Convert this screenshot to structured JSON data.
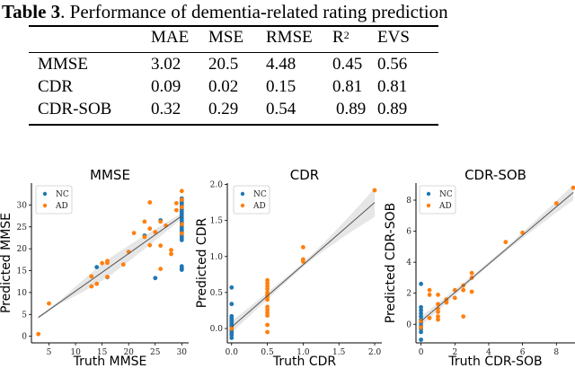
{
  "caption": {
    "label": "Table 3",
    "text": ". Performance of dementia-related rating prediction"
  },
  "table": {
    "columns": [
      "",
      "MAE",
      "MSE",
      "RMSE",
      "R",
      "EVS"
    ],
    "r2_superscript": "2",
    "rows": [
      {
        "name": "MMSE",
        "values": [
          "3.02",
          "20.5",
          "4.48",
          "0.45",
          "0.56"
        ]
      },
      {
        "name": "CDR",
        "values": [
          "0.09",
          "0.02",
          "0.15",
          "0.81",
          "0.81"
        ]
      },
      {
        "name": "CDR-SOB",
        "values": [
          "0.32",
          "0.29",
          "0.54",
          "0.89",
          "0.89"
        ]
      }
    ]
  },
  "colors": {
    "NC": "#1f77b4",
    "AD": "#ff7f0e",
    "fit": "#555555",
    "band": "#e6e6e6"
  },
  "chart_data": [
    {
      "type": "scatter",
      "title": "MMSE",
      "xlabel": "Truth MMSE",
      "ylabel": "Predicted MMSE",
      "xlim": [
        1.7,
        31.3
      ],
      "ylim": [
        -1.5,
        35
      ],
      "xticks": [
        5,
        10,
        15,
        20,
        25,
        30
      ],
      "yticks": [
        0,
        5,
        10,
        15,
        20,
        25,
        30
      ],
      "legend": {
        "position": "top-left",
        "entries": [
          "NC",
          "AD"
        ]
      },
      "fit_line": {
        "x": [
          3,
          30
        ],
        "y": [
          4.3,
          27.5
        ],
        "band_halfwidth": [
          2.0,
          0.6
        ]
      },
      "series": [
        {
          "name": "NC",
          "points": [
            [
              14,
              15.8
            ],
            [
              16,
              13.5
            ],
            [
              23,
              23
            ],
            [
              25,
              13.3
            ],
            [
              26,
              26.5
            ],
            [
              30,
              31.5
            ],
            [
              30,
              31
            ],
            [
              30,
              30.5
            ],
            [
              30,
              30
            ],
            [
              30,
              29.5
            ],
            [
              30,
              29
            ],
            [
              30,
              28.5
            ],
            [
              30,
              28
            ],
            [
              30,
              27.5
            ],
            [
              30,
              27
            ],
            [
              30,
              26.5
            ],
            [
              30,
              26
            ],
            [
              30,
              25.5
            ],
            [
              30,
              25
            ],
            [
              30,
              24.5
            ],
            [
              30,
              24
            ],
            [
              30,
              23.5
            ],
            [
              30,
              23
            ],
            [
              30,
              22.5
            ],
            [
              30,
              22
            ],
            [
              30,
              16
            ],
            [
              30,
              15.5
            ],
            [
              30,
              15.2
            ]
          ]
        },
        {
          "name": "AD",
          "points": [
            [
              3,
              0.5
            ],
            [
              5,
              7.5
            ],
            [
              13,
              13.7
            ],
            [
              13,
              11.4
            ],
            [
              14,
              12
            ],
            [
              15,
              16.7
            ],
            [
              16,
              17.2
            ],
            [
              16,
              16.8
            ],
            [
              16,
              13.6
            ],
            [
              19,
              16.4
            ],
            [
              20,
              19.3
            ],
            [
              21,
              23.6
            ],
            [
              23,
              26.2
            ],
            [
              23,
              22.7
            ],
            [
              24,
              30.6
            ],
            [
              24,
              24.6
            ],
            [
              24,
              20.8
            ],
            [
              25,
              23.8
            ],
            [
              26,
              26.2
            ],
            [
              26,
              20.7
            ],
            [
              26,
              15.4
            ],
            [
              27,
              25.3
            ],
            [
              28,
              19.7
            ],
            [
              28,
              18.8
            ],
            [
              29,
              30.4
            ],
            [
              29,
              28.8
            ],
            [
              30,
              33.2
            ],
            [
              30,
              31.2
            ],
            [
              30,
              29.5
            ],
            [
              30,
              25.6
            ],
            [
              30,
              23.5
            ]
          ]
        }
      ]
    },
    {
      "type": "scatter",
      "title": "CDR",
      "xlabel": "Truth CDR",
      "ylabel": "Predicted CDR",
      "xlim": [
        -0.06,
        2.1
      ],
      "ylim": [
        -0.2,
        2.02
      ],
      "xticks": [
        0.0,
        0.5,
        1.0,
        1.5,
        2.0
      ],
      "yticks": [
        0.0,
        0.5,
        1.0,
        1.5,
        2.0
      ],
      "legend": {
        "position": "top-left",
        "entries": [
          "NC",
          "AD"
        ]
      },
      "fit_line": {
        "x": [
          0,
          2
        ],
        "y": [
          0.02,
          1.75
        ],
        "band_halfwidth": [
          0.03,
          0.2
        ]
      },
      "series": [
        {
          "name": "NC",
          "points": [
            [
              0,
              0.57
            ],
            [
              0,
              0.34
            ],
            [
              0,
              0.17
            ],
            [
              0,
              0.14
            ],
            [
              0,
              0.11
            ],
            [
              0,
              0.08
            ],
            [
              0,
              0.05
            ],
            [
              0,
              0.03
            ],
            [
              0,
              0.0
            ],
            [
              0,
              -0.03
            ],
            [
              0,
              -0.06
            ],
            [
              0,
              -0.09
            ],
            [
              0,
              -0.13
            ]
          ]
        },
        {
          "name": "AD",
          "points": [
            [
              0,
              0.0
            ],
            [
              0.5,
              0.67
            ],
            [
              0.5,
              0.63
            ],
            [
              0.5,
              0.59
            ],
            [
              0.5,
              0.55
            ],
            [
              0.5,
              0.5
            ],
            [
              0.5,
              0.47
            ],
            [
              0.5,
              0.44
            ],
            [
              0.5,
              0.4
            ],
            [
              0.5,
              0.3
            ],
            [
              0.5,
              0.26
            ],
            [
              0.5,
              0.22
            ],
            [
              0.5,
              0.18
            ],
            [
              0.5,
              0.05
            ],
            [
              0.5,
              -0.05
            ],
            [
              1,
              1.13
            ],
            [
              1,
              0.96
            ],
            [
              1,
              0.93
            ],
            [
              2,
              1.92
            ]
          ]
        }
      ]
    },
    {
      "type": "scatter",
      "title": "CDR-SOB",
      "xlabel": "Truth CDR-SOB",
      "ylabel": "Predicted CDR-SOB",
      "xlim": [
        -0.3,
        9.1
      ],
      "ylim": [
        -1.2,
        9.1
      ],
      "xticks": [
        0,
        2,
        4,
        6,
        8
      ],
      "yticks": [
        0,
        2,
        4,
        6,
        8
      ],
      "legend": {
        "position": "top-left",
        "entries": [
          "NC",
          "AD"
        ]
      },
      "fit_line": {
        "x": [
          0,
          9
        ],
        "y": [
          0.2,
          8.5
        ],
        "band_halfwidth": [
          0.12,
          0.5
        ]
      },
      "series": [
        {
          "name": "NC",
          "points": [
            [
              0,
              2.6
            ],
            [
              0,
              1.1
            ],
            [
              0,
              0.9
            ],
            [
              0,
              0.7
            ],
            [
              0,
              0.5
            ],
            [
              0,
              0.3
            ],
            [
              0,
              0.1
            ],
            [
              0,
              -0.1
            ],
            [
              0,
              -0.3
            ],
            [
              0,
              -0.5
            ],
            [
              0,
              -1.0
            ]
          ]
        },
        {
          "name": "AD",
          "points": [
            [
              0,
              0.2
            ],
            [
              0,
              -0.2
            ],
            [
              0.5,
              2.2
            ],
            [
              0.5,
              1.9
            ],
            [
              0.5,
              0.4
            ],
            [
              1,
              1.9
            ],
            [
              1,
              1.3
            ],
            [
              1,
              1.0
            ],
            [
              1,
              0.8
            ],
            [
              1,
              0.5
            ],
            [
              1,
              0.3
            ],
            [
              1.5,
              1.6
            ],
            [
              1.5,
              1.4
            ],
            [
              2,
              2.2
            ],
            [
              2,
              1.7
            ],
            [
              2.5,
              2.5
            ],
            [
              2.5,
              2.2
            ],
            [
              2.5,
              0.5
            ],
            [
              3,
              3.3
            ],
            [
              3,
              3.0
            ],
            [
              3,
              2.1
            ],
            [
              5,
              5.3
            ],
            [
              6,
              5.9
            ],
            [
              8,
              7.8
            ],
            [
              9,
              8.8
            ]
          ]
        }
      ]
    }
  ]
}
